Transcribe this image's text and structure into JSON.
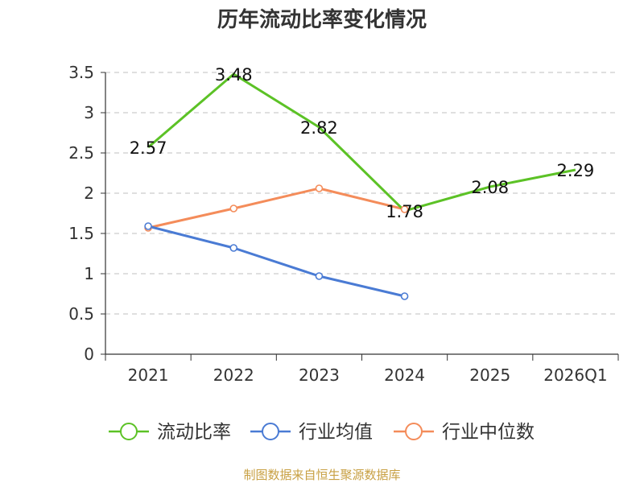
{
  "chart_data": {
    "type": "line",
    "title": "历年流动比率变化情况",
    "categories": [
      "2021",
      "2022",
      "2023",
      "2024",
      "2025",
      "2026Q1"
    ],
    "ylim": [
      0,
      3.5
    ],
    "yticks": [
      "0",
      "0.5",
      "1",
      "1.5",
      "2",
      "2.5",
      "3",
      "3.5"
    ],
    "grid": true,
    "legend_position": "bottom",
    "series": [
      {
        "name": "流动比率",
        "color": "#5cc226",
        "values": [
          2.57,
          3.48,
          2.82,
          1.78,
          2.08,
          2.29
        ],
        "labels": [
          "2.57",
          "3.48",
          "2.82",
          "1.78",
          "2.08",
          "2.29"
        ]
      },
      {
        "name": "行业均值",
        "color": "#4a7bd4",
        "values": [
          1.59,
          1.32,
          0.97,
          0.72,
          null,
          null
        ]
      },
      {
        "name": "行业中位数",
        "color": "#f48c5a",
        "values": [
          1.57,
          1.81,
          2.06,
          1.8,
          null,
          null
        ]
      }
    ]
  },
  "source_text": "制图数据来自恒生聚源数据库"
}
